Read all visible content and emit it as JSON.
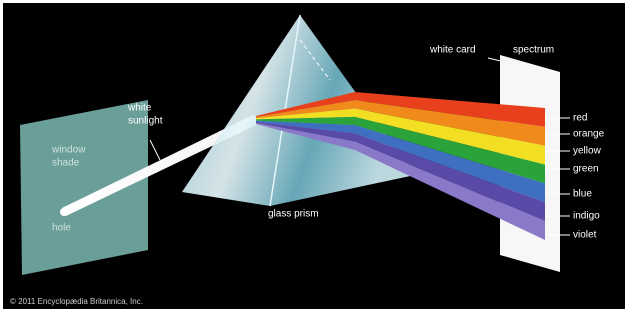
{
  "labels": {
    "white_sunlight": [
      "white",
      "sunlight"
    ],
    "window_shade": [
      "window",
      "shade"
    ],
    "hole": "hole",
    "glass_prism": "glass prism",
    "white_card": "white card",
    "spectrum": "spectrum"
  },
  "spectrum_colors": [
    "red",
    "orange",
    "yellow",
    "green",
    "blue",
    "indigo",
    "violet"
  ],
  "copyright": "© 2011 Encyclopædia Britannica, Inc."
}
